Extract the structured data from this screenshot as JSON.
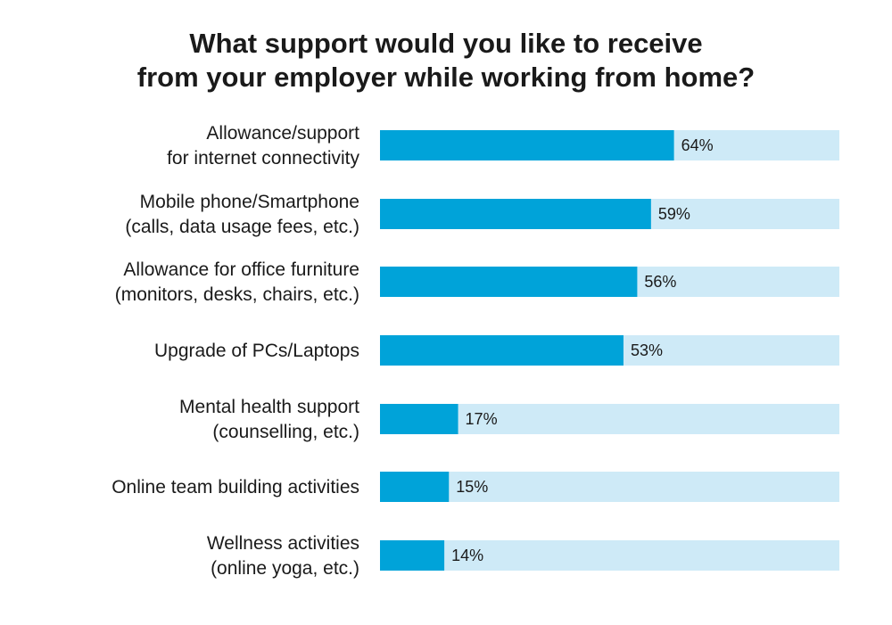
{
  "chart_data": {
    "type": "bar",
    "orientation": "horizontal",
    "title_lines": [
      "What support would you like to receive",
      "from your employer while working from home?"
    ],
    "categories": [
      [
        "Allowance/support",
        "for internet connectivity"
      ],
      [
        "Mobile phone/Smartphone",
        "(calls, data usage fees, etc.)"
      ],
      [
        "Allowance for office furniture",
        "(monitors, desks, chairs, etc.)"
      ],
      [
        "Upgrade of PCs/Laptops"
      ],
      [
        "Mental health support",
        "(counselling, etc.)"
      ],
      [
        "Online team building activities"
      ],
      [
        "Wellness activities",
        "(online yoga, etc.)"
      ]
    ],
    "values": [
      64,
      59,
      56,
      53,
      17,
      15,
      14
    ],
    "value_labels": [
      "64%",
      "59%",
      "56%",
      "53%",
      "17%",
      "15%",
      "14%"
    ],
    "xlim": [
      0,
      100
    ],
    "colors": {
      "bar": "#00a3d9",
      "track": "#ceeaf7"
    },
    "grid": false
  }
}
